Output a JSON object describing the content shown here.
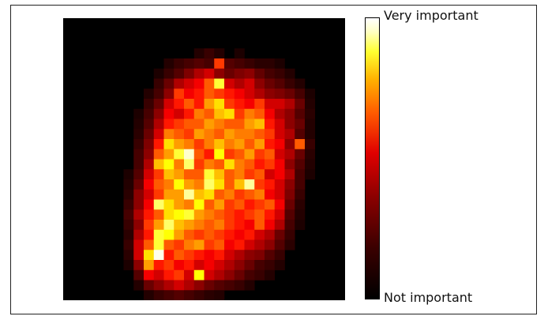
{
  "colors": {
    "frame": "#222222",
    "background": "#ffffff",
    "colormap": "hot"
  },
  "colorbar": {
    "top_label": "Very important",
    "bottom_label": "Not important"
  },
  "chart_data": {
    "type": "heatmap",
    "rows": 28,
    "cols": 28,
    "colormap": "hot",
    "axes": "off",
    "value_range": [
      0,
      1
    ],
    "legend": "colorbar-right",
    "values": [
      [
        0,
        0,
        0,
        0,
        0,
        0,
        0,
        0,
        0,
        0,
        0,
        0,
        0,
        0,
        0,
        0,
        0,
        0,
        0,
        0,
        0,
        0,
        0,
        0,
        0,
        0,
        0,
        0
      ],
      [
        0,
        0,
        0,
        0,
        0,
        0,
        0,
        0,
        0,
        0,
        0,
        0,
        0,
        0,
        0,
        0,
        0,
        0,
        0,
        0,
        0,
        0,
        0,
        0,
        0,
        0,
        0,
        0
      ],
      [
        0,
        0,
        0,
        0,
        0,
        0,
        0,
        0,
        0,
        0,
        0,
        0,
        0,
        0,
        0,
        0,
        0,
        0,
        0,
        0,
        0,
        0,
        0,
        0,
        0,
        0,
        0,
        0
      ],
      [
        0,
        0,
        0,
        0,
        0,
        0,
        0,
        0,
        0,
        0,
        0,
        0,
        0,
        0.05,
        0.08,
        0.05,
        0,
        0.04,
        0,
        0,
        0,
        0,
        0,
        0,
        0,
        0,
        0,
        0
      ],
      [
        0,
        0,
        0,
        0,
        0,
        0,
        0,
        0,
        0,
        0,
        0.05,
        0.08,
        0.1,
        0.12,
        0.1,
        0.45,
        0.12,
        0.1,
        0.08,
        0.06,
        0.06,
        0.04,
        0,
        0,
        0,
        0,
        0,
        0
      ],
      [
        0,
        0,
        0,
        0,
        0,
        0,
        0,
        0,
        0,
        0.04,
        0.08,
        0.12,
        0.18,
        0.25,
        0.3,
        0.2,
        0.15,
        0.18,
        0.2,
        0.14,
        0.1,
        0.08,
        0.05,
        0,
        0,
        0,
        0,
        0
      ],
      [
        0,
        0,
        0,
        0,
        0,
        0,
        0,
        0,
        0,
        0.08,
        0.15,
        0.25,
        0.3,
        0.35,
        0.5,
        0.8,
        0.3,
        0.25,
        0.3,
        0.2,
        0.15,
        0.12,
        0.08,
        0.05,
        0,
        0,
        0,
        0
      ],
      [
        0,
        0,
        0,
        0,
        0,
        0,
        0,
        0,
        0.05,
        0.1,
        0.2,
        0.45,
        0.35,
        0.4,
        0.5,
        0.45,
        0.4,
        0.35,
        0.3,
        0.25,
        0.2,
        0.18,
        0.15,
        0.1,
        0.04,
        0,
        0,
        0
      ],
      [
        0,
        0,
        0,
        0,
        0,
        0,
        0,
        0,
        0.08,
        0.15,
        0.3,
        0.4,
        0.5,
        0.4,
        0.6,
        0.7,
        0.45,
        0.4,
        0.35,
        0.45,
        0.3,
        0.3,
        0.25,
        0.15,
        0.05,
        0,
        0,
        0
      ],
      [
        0,
        0,
        0,
        0,
        0,
        0,
        0,
        0.04,
        0.1,
        0.2,
        0.35,
        0.3,
        0.4,
        0.55,
        0.5,
        0.65,
        0.7,
        0.45,
        0.55,
        0.5,
        0.35,
        0.25,
        0.2,
        0.12,
        0.06,
        0,
        0,
        0
      ],
      [
        0,
        0,
        0,
        0,
        0,
        0,
        0,
        0.05,
        0.12,
        0.25,
        0.4,
        0.45,
        0.5,
        0.5,
        0.6,
        0.55,
        0.5,
        0.5,
        0.6,
        0.65,
        0.4,
        0.3,
        0.2,
        0.15,
        0.05,
        0,
        0,
        0
      ],
      [
        0,
        0,
        0,
        0,
        0,
        0,
        0,
        0.06,
        0.15,
        0.3,
        0.55,
        0.5,
        0.45,
        0.6,
        0.55,
        0.5,
        0.6,
        0.55,
        0.55,
        0.5,
        0.45,
        0.3,
        0.25,
        0.12,
        0.05,
        0,
        0,
        0
      ],
      [
        0,
        0,
        0,
        0,
        0,
        0,
        0,
        0.08,
        0.18,
        0.4,
        0.7,
        0.6,
        0.55,
        0.45,
        0.55,
        0.65,
        0.55,
        0.6,
        0.5,
        0.6,
        0.4,
        0.35,
        0.2,
        0.5,
        0.08,
        0,
        0,
        0
      ],
      [
        0,
        0,
        0,
        0,
        0,
        0,
        0,
        0.1,
        0.2,
        0.5,
        0.6,
        0.8,
        0.95,
        0.5,
        0.4,
        0.75,
        0.45,
        0.5,
        0.6,
        0.45,
        0.5,
        0.3,
        0.25,
        0.15,
        0.06,
        0,
        0,
        0
      ],
      [
        0,
        0,
        0,
        0,
        0,
        0,
        0,
        0.1,
        0.25,
        0.65,
        0.75,
        0.55,
        0.85,
        0.45,
        0.55,
        0.5,
        0.7,
        0.55,
        0.5,
        0.4,
        0.45,
        0.35,
        0.2,
        0.12,
        0.05,
        0,
        0,
        0
      ],
      [
        0,
        0,
        0,
        0,
        0,
        0,
        0.04,
        0.12,
        0.3,
        0.45,
        0.65,
        0.6,
        0.5,
        0.5,
        0.8,
        0.65,
        0.5,
        0.55,
        0.45,
        0.5,
        0.3,
        0.35,
        0.25,
        0.1,
        0.04,
        0,
        0,
        0
      ],
      [
        0,
        0,
        0,
        0,
        0,
        0,
        0.05,
        0.15,
        0.35,
        0.5,
        0.55,
        0.75,
        0.6,
        0.55,
        0.85,
        0.7,
        0.5,
        0.65,
        0.9,
        0.45,
        0.4,
        0.3,
        0.2,
        0.1,
        0,
        0,
        0,
        0
      ],
      [
        0,
        0,
        0,
        0,
        0,
        0,
        0.06,
        0.2,
        0.3,
        0.45,
        0.6,
        0.6,
        0.9,
        0.65,
        0.7,
        0.5,
        0.55,
        0.45,
        0.5,
        0.55,
        0.35,
        0.3,
        0.18,
        0.08,
        0,
        0,
        0,
        0
      ],
      [
        0,
        0,
        0,
        0,
        0,
        0,
        0.08,
        0.2,
        0.35,
        0.85,
        0.7,
        0.6,
        0.55,
        0.75,
        0.5,
        0.6,
        0.45,
        0.5,
        0.4,
        0.45,
        0.5,
        0.35,
        0.15,
        0.06,
        0,
        0,
        0,
        0
      ],
      [
        0,
        0,
        0,
        0,
        0,
        0,
        0.1,
        0.25,
        0.4,
        0.5,
        0.7,
        0.75,
        0.8,
        0.6,
        0.55,
        0.5,
        0.45,
        0.4,
        0.45,
        0.5,
        0.4,
        0.3,
        0.12,
        0.05,
        0,
        0,
        0,
        0
      ],
      [
        0,
        0,
        0,
        0,
        0,
        0,
        0.08,
        0.2,
        0.45,
        0.6,
        0.85,
        0.65,
        0.6,
        0.55,
        0.5,
        0.55,
        0.45,
        0.4,
        0.35,
        0.5,
        0.35,
        0.25,
        0.1,
        0.04,
        0,
        0,
        0,
        0
      ],
      [
        0,
        0,
        0,
        0,
        0,
        0,
        0.06,
        0.25,
        0.4,
        0.8,
        0.75,
        0.6,
        0.5,
        0.45,
        0.5,
        0.45,
        0.4,
        0.35,
        0.4,
        0.3,
        0.25,
        0.15,
        0.08,
        0,
        0,
        0,
        0,
        0
      ],
      [
        0,
        0,
        0,
        0,
        0,
        0,
        0.08,
        0.3,
        0.5,
        0.8,
        0.5,
        0.45,
        0.55,
        0.6,
        0.45,
        0.5,
        0.35,
        0.4,
        0.3,
        0.25,
        0.2,
        0.12,
        0.06,
        0,
        0,
        0,
        0,
        0
      ],
      [
        0,
        0,
        0,
        0,
        0,
        0,
        0.06,
        0.3,
        0.7,
        0.98,
        0.4,
        0.5,
        0.45,
        0.4,
        0.35,
        0.4,
        0.3,
        0.25,
        0.2,
        0.18,
        0.12,
        0.08,
        0,
        0,
        0,
        0,
        0,
        0
      ],
      [
        0,
        0,
        0,
        0,
        0,
        0,
        0.04,
        0.2,
        0.6,
        0.4,
        0.45,
        0.35,
        0.4,
        0.3,
        0.35,
        0.3,
        0.25,
        0.2,
        0.15,
        0.1,
        0.08,
        0.05,
        0,
        0,
        0,
        0,
        0,
        0
      ],
      [
        0,
        0,
        0,
        0,
        0,
        0,
        0,
        0.12,
        0.35,
        0.3,
        0.4,
        0.45,
        0.3,
        0.75,
        0.3,
        0.25,
        0.2,
        0.15,
        0.1,
        0.08,
        0.05,
        0,
        0,
        0,
        0,
        0,
        0,
        0
      ],
      [
        0,
        0,
        0,
        0,
        0,
        0,
        0,
        0.05,
        0.15,
        0.2,
        0.25,
        0.3,
        0.25,
        0.2,
        0.15,
        0.12,
        0.1,
        0.08,
        0.05,
        0,
        0,
        0,
        0,
        0,
        0,
        0,
        0,
        0
      ],
      [
        0,
        0,
        0,
        0,
        0,
        0,
        0,
        0,
        0.05,
        0.08,
        0.1,
        0.12,
        0.1,
        0.08,
        0.06,
        0.05,
        0,
        0,
        0,
        0,
        0,
        0,
        0,
        0,
        0,
        0,
        0,
        0
      ]
    ]
  }
}
